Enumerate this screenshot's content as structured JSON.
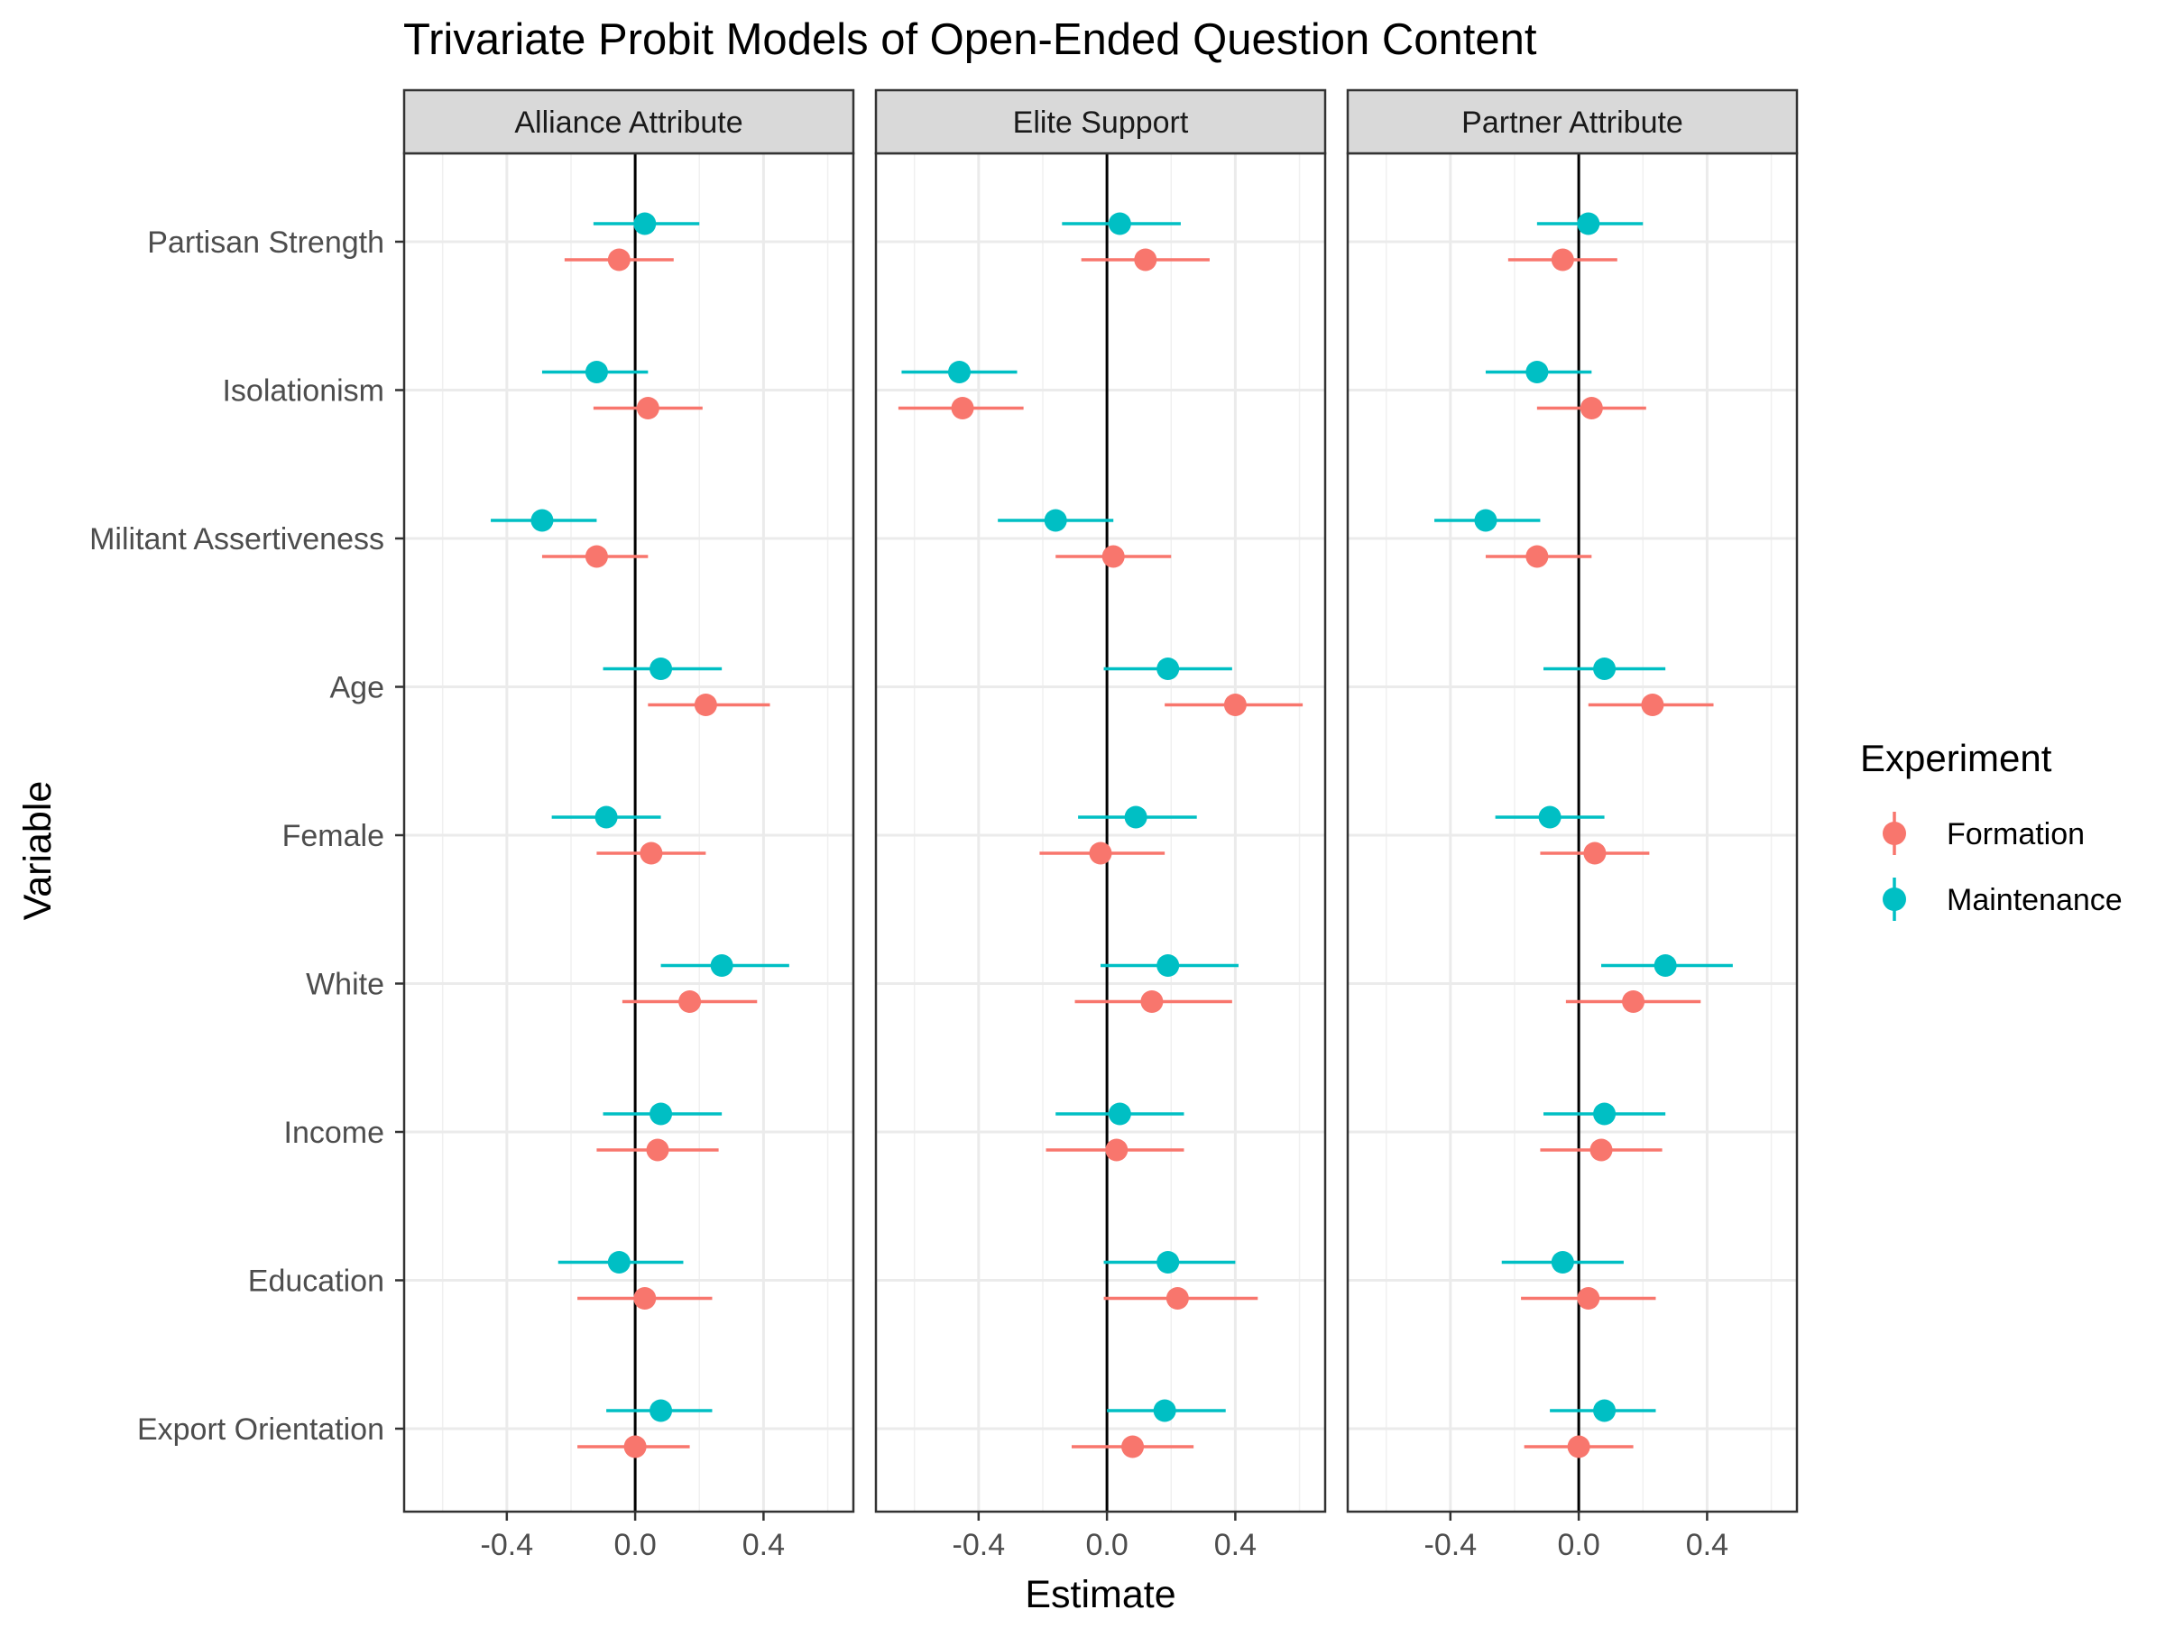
{
  "chart_data": {
    "type": "scatter",
    "title": "Trivariate Probit Models of Open-Ended Question Content",
    "xlabel": "Estimate",
    "ylabel": "Variable",
    "xlim": [
      -0.72,
      0.68
    ],
    "x_ticks": [
      "-0.4",
      "0.0",
      "0.4"
    ],
    "x_tick_values": [
      -0.4,
      0.0,
      0.4
    ],
    "grid": true,
    "legend": {
      "title": "Experiment",
      "position": "right",
      "entries": [
        "Formation",
        "Maintenance"
      ]
    },
    "colors": {
      "Formation": "#F8766D",
      "Maintenance": "#00BFC4"
    },
    "variables": [
      "Partisan Strength",
      "Isolationism",
      "Militant Assertiveness",
      "Age",
      "Female",
      "White",
      "Income",
      "Education",
      "Export Orientation"
    ],
    "panels": [
      {
        "name": "Alliance Attribute",
        "series": [
          {
            "name": "Formation",
            "estimates": [
              -0.05,
              0.04,
              -0.12,
              0.22,
              0.05,
              0.17,
              0.07,
              0.03,
              0.0
            ],
            "lower": [
              -0.22,
              -0.13,
              -0.29,
              0.04,
              -0.12,
              -0.04,
              -0.12,
              -0.18,
              -0.18
            ],
            "upper": [
              0.12,
              0.21,
              0.04,
              0.42,
              0.22,
              0.38,
              0.26,
              0.24,
              0.17
            ]
          },
          {
            "name": "Maintenance",
            "estimates": [
              0.03,
              -0.12,
              -0.29,
              0.08,
              -0.09,
              0.27,
              0.08,
              -0.05,
              0.08
            ],
            "lower": [
              -0.13,
              -0.29,
              -0.45,
              -0.1,
              -0.26,
              0.08,
              -0.1,
              -0.24,
              -0.09
            ],
            "upper": [
              0.2,
              0.04,
              -0.12,
              0.27,
              0.08,
              0.48,
              0.27,
              0.15,
              0.24
            ]
          }
        ]
      },
      {
        "name": "Elite Support",
        "series": [
          {
            "name": "Formation",
            "estimates": [
              0.12,
              -0.45,
              0.02,
              0.4,
              -0.02,
              0.14,
              0.03,
              0.22,
              0.08
            ],
            "lower": [
              -0.08,
              -0.65,
              -0.16,
              0.18,
              -0.21,
              -0.1,
              -0.19,
              -0.01,
              -0.11
            ],
            "upper": [
              0.32,
              -0.26,
              0.2,
              0.61,
              0.18,
              0.39,
              0.24,
              0.47,
              0.27
            ]
          },
          {
            "name": "Maintenance",
            "estimates": [
              0.04,
              -0.46,
              -0.16,
              0.19,
              0.09,
              0.19,
              0.04,
              0.19,
              0.18
            ],
            "lower": [
              -0.14,
              -0.64,
              -0.34,
              -0.01,
              -0.09,
              -0.02,
              -0.16,
              -0.01,
              0.0
            ],
            "upper": [
              0.23,
              -0.28,
              0.02,
              0.39,
              0.28,
              0.41,
              0.24,
              0.4,
              0.37
            ]
          }
        ]
      },
      {
        "name": "Partner Attribute",
        "series": [
          {
            "name": "Formation",
            "estimates": [
              -0.05,
              0.04,
              -0.13,
              0.23,
              0.05,
              0.17,
              0.07,
              0.03,
              0.0
            ],
            "lower": [
              -0.22,
              -0.13,
              -0.29,
              0.03,
              -0.12,
              -0.04,
              -0.12,
              -0.18,
              -0.17
            ],
            "upper": [
              0.12,
              0.21,
              0.04,
              0.42,
              0.22,
              0.38,
              0.26,
              0.24,
              0.17
            ]
          },
          {
            "name": "Maintenance",
            "estimates": [
              0.03,
              -0.13,
              -0.29,
              0.08,
              -0.09,
              0.27,
              0.08,
              -0.05,
              0.08
            ],
            "lower": [
              -0.13,
              -0.29,
              -0.45,
              -0.11,
              -0.26,
              0.07,
              -0.11,
              -0.24,
              -0.09
            ],
            "upper": [
              0.2,
              0.04,
              -0.12,
              0.27,
              0.08,
              0.48,
              0.27,
              0.14,
              0.24
            ]
          }
        ]
      }
    ]
  }
}
